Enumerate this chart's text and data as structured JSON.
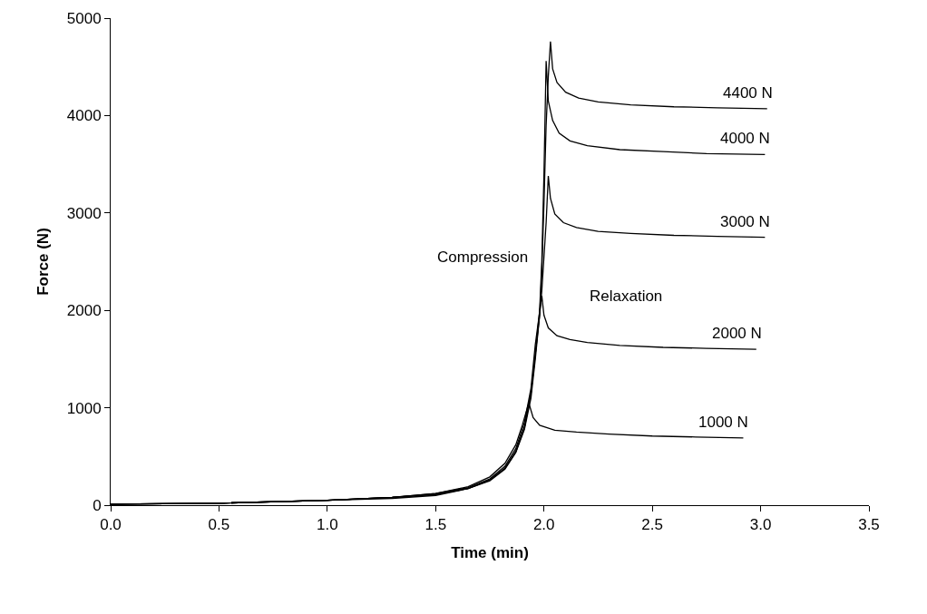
{
  "chart_data": {
    "type": "line",
    "xlabel": "Time (min)",
    "ylabel": "Force (N)",
    "xlim": [
      0,
      3.5
    ],
    "xticks": [
      {
        "value": 0,
        "label": "0.0"
      },
      {
        "value": 0.5,
        "label": "0.5"
      },
      {
        "value": 1,
        "label": "1.0"
      },
      {
        "value": 1.5,
        "label": "1.5"
      },
      {
        "value": 2,
        "label": "2.0"
      },
      {
        "value": 2.5,
        "label": "2.5"
      },
      {
        "value": 3,
        "label": "3.0"
      },
      {
        "value": 3.5,
        "label": "3.5"
      }
    ],
    "ylim": [
      0,
      5000
    ],
    "yticks": [
      0,
      1000,
      2000,
      3000,
      4000,
      5000
    ],
    "legend": false,
    "marker": "none",
    "line_style": "solid",
    "series": [
      {
        "name": "1000 N",
        "color": "#000000",
        "x": [
          0,
          0.5,
          1.0,
          1.3,
          1.5,
          1.65,
          1.75,
          1.82,
          1.87,
          1.9,
          1.93,
          1.95,
          1.98,
          2.05,
          2.15,
          2.3,
          2.5,
          2.7,
          2.92
        ],
        "values": [
          10,
          20,
          50,
          80,
          120,
          190,
          290,
          430,
          620,
          820,
          1050,
          900,
          820,
          770,
          750,
          730,
          710,
          700,
          690
        ]
      },
      {
        "name": "2000 N",
        "color": "#000000",
        "x": [
          0,
          0.5,
          1.0,
          1.3,
          1.5,
          1.65,
          1.75,
          1.82,
          1.87,
          1.91,
          1.94,
          1.96,
          1.99,
          2.0,
          2.02,
          2.06,
          2.12,
          2.2,
          2.35,
          2.55,
          2.75,
          2.98
        ],
        "values": [
          10,
          20,
          50,
          80,
          120,
          180,
          270,
          400,
          580,
          850,
          1200,
          1650,
          2150,
          1950,
          1820,
          1740,
          1700,
          1670,
          1640,
          1620,
          1610,
          1600
        ]
      },
      {
        "name": "3000 N",
        "color": "#000000",
        "x": [
          0,
          0.5,
          1.0,
          1.3,
          1.5,
          1.65,
          1.75,
          1.82,
          1.87,
          1.91,
          1.94,
          1.96,
          1.98,
          1.99,
          2.01,
          2.02,
          2.03,
          2.05,
          2.09,
          2.15,
          2.25,
          2.4,
          2.6,
          2.8,
          3.02
        ],
        "values": [
          10,
          20,
          50,
          80,
          110,
          170,
          260,
          380,
          550,
          800,
          1150,
          1550,
          1950,
          2200,
          2900,
          3380,
          3150,
          2990,
          2900,
          2850,
          2810,
          2790,
          2770,
          2760,
          2750
        ]
      },
      {
        "name": "4000 N",
        "color": "#000000",
        "x": [
          0,
          0.5,
          1.0,
          1.3,
          1.5,
          1.65,
          1.75,
          1.82,
          1.87,
          1.91,
          1.94,
          1.96,
          1.98,
          1.99,
          2.0,
          2.01,
          2.02,
          2.04,
          2.07,
          2.12,
          2.2,
          2.35,
          2.55,
          2.75,
          3.02
        ],
        "values": [
          10,
          20,
          50,
          80,
          110,
          170,
          260,
          380,
          550,
          800,
          1150,
          1550,
          2000,
          2500,
          3400,
          4560,
          4150,
          3950,
          3820,
          3740,
          3690,
          3650,
          3630,
          3610,
          3600
        ]
      },
      {
        "name": "4400 N",
        "color": "#000000",
        "x": [
          0,
          0.5,
          1.0,
          1.3,
          1.5,
          1.65,
          1.75,
          1.82,
          1.87,
          1.91,
          1.94,
          1.96,
          1.98,
          1.99,
          2.0,
          2.01,
          2.02,
          2.03,
          2.04,
          2.06,
          2.1,
          2.16,
          2.25,
          2.4,
          2.6,
          2.8,
          3.03
        ],
        "values": [
          10,
          20,
          50,
          70,
          100,
          170,
          250,
          370,
          540,
          780,
          1100,
          1500,
          1950,
          2400,
          3100,
          3900,
          4400,
          4760,
          4480,
          4340,
          4240,
          4180,
          4140,
          4110,
          4090,
          4080,
          4070
        ]
      }
    ],
    "annotations": [
      "Compression",
      "Relaxation"
    ]
  }
}
